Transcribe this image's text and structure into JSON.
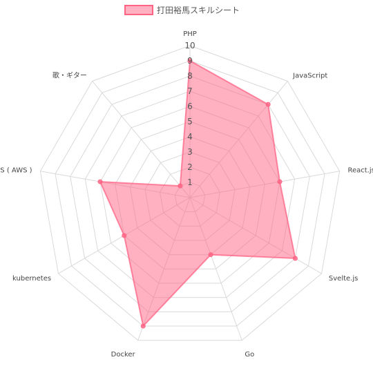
{
  "chart_data": {
    "type": "radar",
    "title": "",
    "categories": [
      "PHP",
      "JavaScript",
      "React.js",
      "Svelte.js",
      "Go",
      "Docker",
      "kubernetes",
      "ECS ( AWS )",
      "歌・ギター"
    ],
    "series": [
      {
        "name": "打田裕馬スキルシート",
        "values": [
          9,
          8,
          6,
          8,
          4,
          9,
          5,
          6,
          1
        ]
      }
    ],
    "rlim": [
      0,
      10
    ],
    "ticks": [
      "1",
      "2",
      "3",
      "4",
      "5",
      "6",
      "7",
      "8",
      "9",
      "10"
    ],
    "grid": true,
    "legend_position": "top",
    "colors": {
      "fill": "#ff6384",
      "fill_opacity": 0.5,
      "stroke": "#ff6384",
      "grid": "#d9d9d9",
      "text": "#555555"
    }
  }
}
